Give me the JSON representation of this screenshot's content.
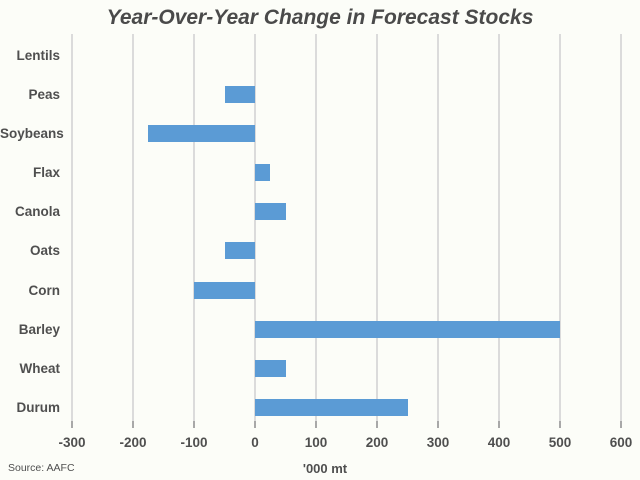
{
  "chart_data": {
    "type": "bar",
    "orientation": "horizontal",
    "title": "Year-Over-Year Change in Forecast Stocks",
    "categories": [
      "Lentils",
      "Peas",
      "Soybeans",
      "Flax",
      "Canola",
      "Oats",
      "Corn",
      "Barley",
      "Wheat",
      "Durum"
    ],
    "values": [
      0,
      -50,
      -175,
      25,
      50,
      -50,
      -100,
      500,
      50,
      250
    ],
    "xlabel": "'000 mt",
    "xlim": [
      -300,
      600
    ],
    "xticks": [
      -300,
      -200,
      -100,
      0,
      100,
      200,
      300,
      400,
      500,
      600
    ],
    "grid": true,
    "legend": "none",
    "source": "Source: AAFC",
    "colors": {
      "bar": "#5B9BD5",
      "gridline": "#DBDBDB",
      "axis_tick": "#A8A8A8",
      "text": "#4F4F4F",
      "title_text": "#4A4A4A",
      "background": "#FCFDF8"
    }
  }
}
